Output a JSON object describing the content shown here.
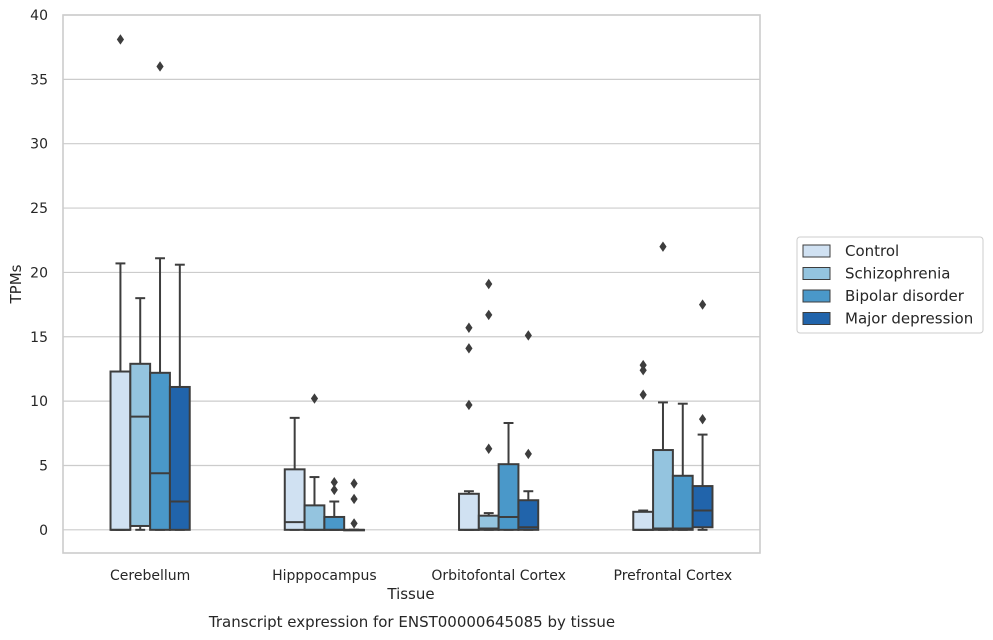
{
  "chart_data": {
    "type": "box",
    "caption": "Transcript expression for ENST00000645085 by tissue",
    "xlabel": "Tissue",
    "ylabel": "TPMs",
    "ylim": [
      -1.8,
      40
    ],
    "yticks": [
      0,
      5,
      10,
      15,
      20,
      25,
      30,
      35,
      40
    ],
    "grid": true,
    "legend_position": "right",
    "categories": [
      "Cerebellum",
      "Hipppocampus",
      "Orbitofontal Cortex",
      "Prefrontal Cortex"
    ],
    "series": [
      {
        "name": "Control",
        "color": "#d0e1f2",
        "boxes": [
          {
            "whislo": 0,
            "q1": 0,
            "med": 0,
            "q3": 12.3,
            "whishi": 20.7,
            "fliers": [
              38.1
            ]
          },
          {
            "whislo": 0,
            "q1": 0,
            "med": 0.6,
            "q3": 4.7,
            "whishi": 8.7,
            "fliers": []
          },
          {
            "whislo": 0,
            "q1": 0,
            "med": 0,
            "q3": 2.8,
            "whishi": 3.0,
            "fliers": [
              15.7,
              14.1,
              9.7
            ]
          },
          {
            "whislo": 0,
            "q1": 0,
            "med": 0,
            "q3": 1.4,
            "whishi": 1.5,
            "fliers": [
              12.8,
              12.4,
              10.5
            ]
          }
        ]
      },
      {
        "name": "Schizophrenia",
        "color": "#94c4df",
        "boxes": [
          {
            "whislo": 0,
            "q1": 0.3,
            "med": 8.8,
            "q3": 12.9,
            "whishi": 18.0,
            "fliers": []
          },
          {
            "whislo": 0,
            "q1": 0,
            "med": 0,
            "q3": 1.9,
            "whishi": 4.1,
            "fliers": [
              10.2
            ]
          },
          {
            "whislo": 0,
            "q1": 0,
            "med": 0.1,
            "q3": 1.1,
            "whishi": 1.3,
            "fliers": [
              19.1,
              16.7,
              6.3
            ]
          },
          {
            "whislo": 0,
            "q1": 0,
            "med": 0.1,
            "q3": 6.2,
            "whishi": 9.9,
            "fliers": [
              22.0
            ]
          }
        ]
      },
      {
        "name": "Bipolar disorder",
        "color": "#4a98c9",
        "boxes": [
          {
            "whislo": 0,
            "q1": 0,
            "med": 4.4,
            "q3": 12.2,
            "whishi": 21.1,
            "fliers": [
              36.0
            ]
          },
          {
            "whislo": 0,
            "q1": 0,
            "med": 0,
            "q3": 1.0,
            "whishi": 2.2,
            "fliers": [
              3.7,
              3.1
            ]
          },
          {
            "whislo": 0,
            "q1": 0,
            "med": 1.0,
            "q3": 5.1,
            "whishi": 8.3,
            "fliers": []
          },
          {
            "whislo": 0,
            "q1": 0,
            "med": 0.1,
            "q3": 4.2,
            "whishi": 9.8,
            "fliers": []
          }
        ]
      },
      {
        "name": "Major depression",
        "color": "#2164ab",
        "boxes": [
          {
            "whislo": 0,
            "q1": 0,
            "med": 2.2,
            "q3": 11.1,
            "whishi": 20.6,
            "fliers": []
          },
          {
            "whislo": 0,
            "q1": 0,
            "med": 0,
            "q3": 0,
            "whishi": 0,
            "fliers": [
              3.6,
              2.4,
              0.5
            ]
          },
          {
            "whislo": 0,
            "q1": 0,
            "med": 0.2,
            "q3": 2.3,
            "whishi": 3.0,
            "fliers": [
              15.1,
              5.9
            ]
          },
          {
            "whislo": 0,
            "q1": 0.2,
            "med": 1.5,
            "q3": 3.4,
            "whishi": 7.4,
            "fliers": [
              17.5,
              8.6
            ]
          }
        ]
      }
    ]
  }
}
